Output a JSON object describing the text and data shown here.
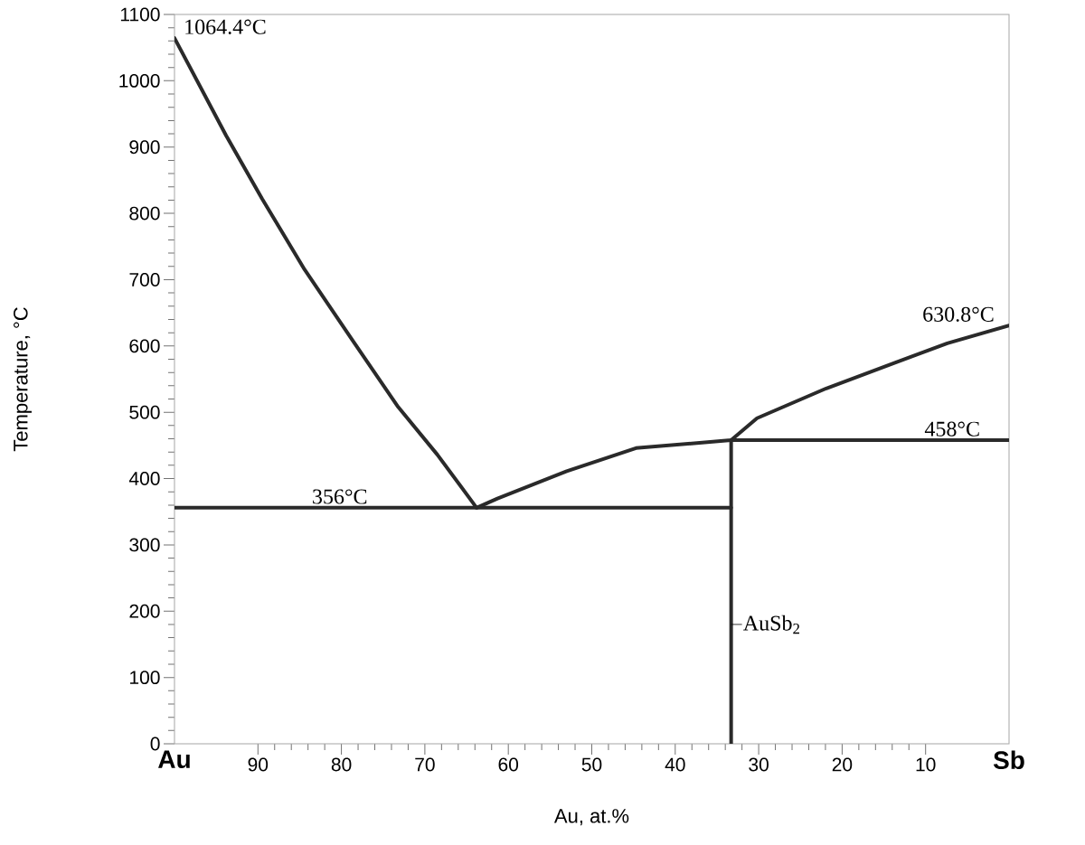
{
  "chart_data": {
    "type": "line",
    "xlabel": "Au, at.%",
    "ylabel": "Temperature, °C",
    "xlim": [
      100,
      0
    ],
    "ylim": [
      0,
      1100
    ],
    "xticks": [
      {
        "value": 100,
        "label": "Au"
      },
      90,
      80,
      70,
      60,
      50,
      40,
      30,
      20,
      10,
      {
        "value": 0,
        "label": "Sb"
      }
    ],
    "yticks": [
      0,
      100,
      200,
      300,
      400,
      500,
      600,
      700,
      800,
      900,
      1000,
      1100
    ],
    "series": [
      {
        "color": "#2a2a2a",
        "x": [
          100,
          93.8,
          89.5,
          84.4,
          78.7,
          73.2,
          68.5,
          63.8
        ],
        "values": [
          1064.4,
          917,
          822,
          715,
          609,
          508,
          436,
          356
        ]
      },
      {
        "color": "#2a2a2a",
        "x": [
          63.8,
          61.3,
          53.0,
          44.7,
          33.3,
          30.2,
          21.9,
          13.6,
          7.4,
          0
        ],
        "values": [
          356,
          370,
          411,
          446,
          458,
          491,
          536,
          575,
          604,
          630.8
        ]
      },
      {
        "color": "#2a2a2a",
        "x": [
          100,
          33.3
        ],
        "values": [
          356,
          356
        ]
      },
      {
        "color": "#2a2a2a",
        "x": [
          33.3,
          0
        ],
        "values": [
          458,
          458
        ]
      },
      {
        "color": "#2a2a2a",
        "x": [
          33.3,
          33.3
        ],
        "values": [
          0,
          458
        ]
      }
    ],
    "annotations": [
      {
        "text": "1064.4°C",
        "x": 100,
        "y": 1064.4
      },
      {
        "text": "630.8°C",
        "x": 0,
        "y": 630.8
      },
      {
        "text": "458°C",
        "x": 6.8,
        "y": 458
      },
      {
        "text": "356°C",
        "x": 80.2,
        "y": 356
      },
      {
        "text": "AuSb$_{2}$",
        "x": 33.3,
        "y": 180
      }
    ]
  }
}
